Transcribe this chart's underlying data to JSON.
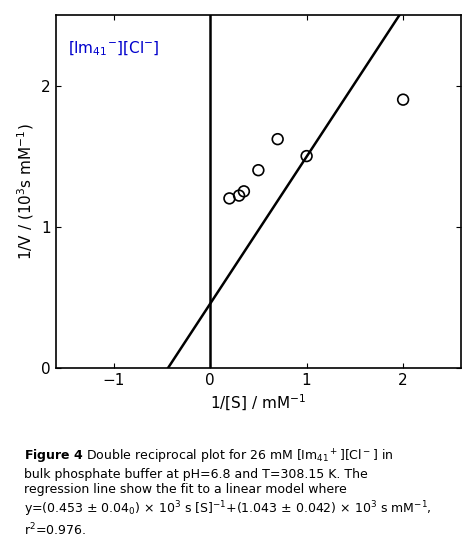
{
  "slope": 1.043,
  "intercept": 0.453,
  "x_line_start": -1.55,
  "x_line_end": 2.55,
  "data_points_x": [
    0.2,
    0.3,
    0.35,
    0.5,
    0.7,
    1.0,
    2.0
  ],
  "data_points_y": [
    1.2,
    1.22,
    1.25,
    1.4,
    1.62,
    1.5,
    1.9
  ],
  "xlim": [
    -1.6,
    2.6
  ],
  "ylim": [
    0,
    2.5
  ],
  "xticks": [
    -1,
    0,
    1,
    2
  ],
  "yticks": [
    0,
    1,
    2
  ],
  "xlabel": "1/[S] / mM$^{-1}$",
  "ylabel": "1/V / (10$^3$s mM$^{-1}$)",
  "label_text": "[Im$_{41}$$^{-}$][Cl$^{-}$]",
  "vline_x": 0,
  "background_color": "#ffffff",
  "line_color": "#000000",
  "point_color": "#000000",
  "point_size": 60,
  "line_width": 1.8
}
